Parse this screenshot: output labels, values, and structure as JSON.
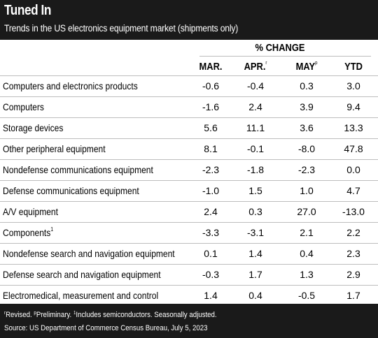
{
  "title": "Tuned In",
  "subtitle": "Trends in the US electronics equipment market (shipments only)",
  "table": {
    "group_header": "% CHANGE",
    "columns": [
      {
        "label": "MAR.",
        "sup": ""
      },
      {
        "label": "APR.",
        "sup": "r"
      },
      {
        "label": "MAY",
        "sup": "p"
      },
      {
        "label": "YTD",
        "sup": ""
      }
    ],
    "rows": [
      {
        "label": "Computers and electronics products",
        "sup": "",
        "values": [
          "-0.6",
          "-0.4",
          "0.3",
          "3.0"
        ]
      },
      {
        "label": "Computers",
        "sup": "",
        "values": [
          "-1.6",
          "2.4",
          "3.9",
          "9.4"
        ]
      },
      {
        "label": "Storage devices",
        "sup": "",
        "values": [
          "5.6",
          "11.1",
          "3.6",
          "13.3"
        ]
      },
      {
        "label": "Other peripheral equipment",
        "sup": "",
        "values": [
          "8.1",
          "-0.1",
          "-8.0",
          "47.8"
        ]
      },
      {
        "label": "Nondefense communications equipment",
        "sup": "",
        "values": [
          "-2.3",
          "-1.8",
          "-2.3",
          "0.0"
        ]
      },
      {
        "label": "Defense communications equipment",
        "sup": "",
        "values": [
          "-1.0",
          "1.5",
          "1.0",
          "4.7"
        ]
      },
      {
        "label": "A/V equipment",
        "sup": "",
        "values": [
          "2.4",
          "0.3",
          "27.0",
          "-13.0"
        ]
      },
      {
        "label": "Components",
        "sup": "1",
        "values": [
          "-3.3",
          "-3.1",
          "2.1",
          "2.2"
        ]
      },
      {
        "label": "Nondefense search and navigation equipment",
        "sup": "",
        "values": [
          "0.1",
          "1.4",
          "0.4",
          "2.3"
        ]
      },
      {
        "label": "Defense search and navigation equipment",
        "sup": "",
        "values": [
          "-0.3",
          "1.7",
          "1.3",
          "2.9"
        ]
      },
      {
        "label": "Electromedical, measurement and control",
        "sup": "",
        "values": [
          "1.4",
          "0.4",
          "-0.5",
          "1.7"
        ]
      }
    ]
  },
  "footnotes": {
    "revised_sup": "r",
    "revised": "Revised.",
    "prelim_sup": "p",
    "prelim": "Preliminary.",
    "includes_sup": "1",
    "includes": "Includes semiconductors. Seasonally adjusted.",
    "source": "Source: US Department of Commerce Census Bureau, July 5, 2023"
  }
}
